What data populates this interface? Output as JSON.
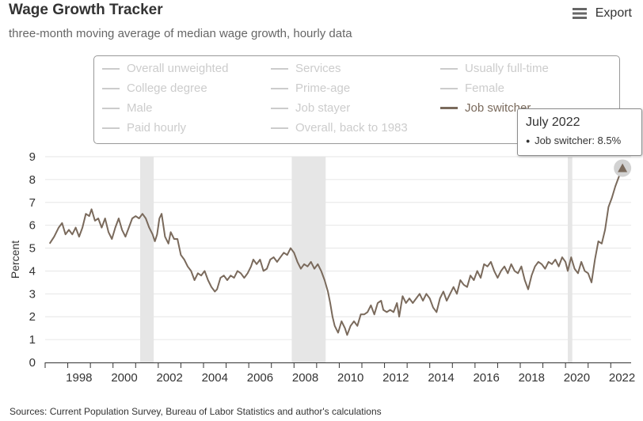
{
  "header": {
    "title": "Wage Growth Tracker",
    "subtitle": "three-month moving average of median wage growth, hourly data"
  },
  "export": {
    "label": "Export",
    "icon": "menu-icon"
  },
  "footer": {
    "source": "Sources: Current Population Survey, Bureau of Labor Statistics and author's calculations"
  },
  "legend": {
    "items": [
      {
        "label": "Overall unweighted",
        "active": false
      },
      {
        "label": "Services",
        "active": false
      },
      {
        "label": "Usually full-time",
        "active": false
      },
      {
        "label": "College degree",
        "active": false
      },
      {
        "label": "Prime-age",
        "active": false
      },
      {
        "label": "Female",
        "active": false
      },
      {
        "label": "Male",
        "active": false
      },
      {
        "label": "Job stayer",
        "active": false
      },
      {
        "label": "Job switcher",
        "active": true
      },
      {
        "label": "Paid hourly",
        "active": false
      },
      {
        "label": "Overall, back to 1983",
        "active": false
      }
    ]
  },
  "tooltip": {
    "title": "July 2022",
    "series": "Job switcher",
    "value_text": "8.5%"
  },
  "colors": {
    "series": "#7a6a5c",
    "recession": "#e6e6e6",
    "grid": "#e6e6e6",
    "inactive_legend": "#cccccc",
    "text": "#333333"
  },
  "chart_data": {
    "type": "line",
    "title": "Wage Growth Tracker",
    "subtitle": "three-month moving average of median wage growth, hourly data",
    "xlabel": "",
    "ylabel": "Percent",
    "xlim": [
      1997.0,
      2022.9
    ],
    "ylim": [
      0,
      9
    ],
    "yticks": [
      0,
      1,
      2,
      3,
      4,
      5,
      6,
      7,
      8,
      9
    ],
    "xticks": [
      1998,
      2000,
      2002,
      2004,
      2006,
      2008,
      2010,
      2012,
      2014,
      2016,
      2018,
      2020,
      2022
    ],
    "grid": "horizontal",
    "recessions": [
      [
        2001.2,
        2001.8
      ],
      [
        2007.9,
        2009.4
      ],
      [
        2020.1,
        2020.3
      ]
    ],
    "series": [
      {
        "name": "Job switcher",
        "points": [
          [
            1997.2,
            5.2
          ],
          [
            1997.4,
            5.5
          ],
          [
            1997.6,
            5.9
          ],
          [
            1997.75,
            6.1
          ],
          [
            1997.9,
            5.6
          ],
          [
            1998.05,
            5.8
          ],
          [
            1998.2,
            5.6
          ],
          [
            1998.35,
            5.9
          ],
          [
            1998.5,
            5.5
          ],
          [
            1998.65,
            5.9
          ],
          [
            1998.8,
            6.5
          ],
          [
            1998.95,
            6.4
          ],
          [
            1999.05,
            6.7
          ],
          [
            1999.2,
            6.2
          ],
          [
            1999.35,
            6.3
          ],
          [
            1999.5,
            5.9
          ],
          [
            1999.65,
            6.3
          ],
          [
            1999.8,
            5.7
          ],
          [
            1999.95,
            5.4
          ],
          [
            2000.1,
            5.9
          ],
          [
            2000.25,
            6.3
          ],
          [
            2000.4,
            5.8
          ],
          [
            2000.55,
            5.5
          ],
          [
            2000.7,
            5.9
          ],
          [
            2000.85,
            6.3
          ],
          [
            2001.0,
            6.4
          ],
          [
            2001.15,
            6.3
          ],
          [
            2001.3,
            6.5
          ],
          [
            2001.45,
            6.3
          ],
          [
            2001.6,
            5.9
          ],
          [
            2001.75,
            5.6
          ],
          [
            2001.85,
            5.3
          ],
          [
            2001.95,
            5.6
          ],
          [
            2002.05,
            6.3
          ],
          [
            2002.15,
            6.5
          ],
          [
            2002.3,
            5.5
          ],
          [
            2002.45,
            5.2
          ],
          [
            2002.55,
            5.7
          ],
          [
            2002.7,
            5.4
          ],
          [
            2002.85,
            5.4
          ],
          [
            2003.0,
            4.7
          ],
          [
            2003.15,
            4.5
          ],
          [
            2003.3,
            4.2
          ],
          [
            2003.45,
            4.0
          ],
          [
            2003.6,
            3.6
          ],
          [
            2003.75,
            3.9
          ],
          [
            2003.9,
            3.8
          ],
          [
            2004.05,
            4.0
          ],
          [
            2004.2,
            3.6
          ],
          [
            2004.35,
            3.3
          ],
          [
            2004.5,
            3.1
          ],
          [
            2004.6,
            3.2
          ],
          [
            2004.75,
            3.7
          ],
          [
            2004.9,
            3.8
          ],
          [
            2005.05,
            3.6
          ],
          [
            2005.2,
            3.8
          ],
          [
            2005.35,
            3.7
          ],
          [
            2005.5,
            4.0
          ],
          [
            2005.65,
            3.9
          ],
          [
            2005.8,
            3.7
          ],
          [
            2005.95,
            3.9
          ],
          [
            2006.1,
            4.2
          ],
          [
            2006.2,
            4.5
          ],
          [
            2006.35,
            4.3
          ],
          [
            2006.5,
            4.5
          ],
          [
            2006.65,
            4.0
          ],
          [
            2006.8,
            4.1
          ],
          [
            2006.95,
            4.5
          ],
          [
            2007.1,
            4.6
          ],
          [
            2007.25,
            4.4
          ],
          [
            2007.4,
            4.6
          ],
          [
            2007.55,
            4.8
          ],
          [
            2007.7,
            4.7
          ],
          [
            2007.85,
            5.0
          ],
          [
            2008.0,
            4.8
          ],
          [
            2008.15,
            4.4
          ],
          [
            2008.3,
            4.1
          ],
          [
            2008.45,
            4.3
          ],
          [
            2008.6,
            4.2
          ],
          [
            2008.75,
            4.4
          ],
          [
            2008.9,
            4.1
          ],
          [
            2009.05,
            4.3
          ],
          [
            2009.2,
            4.0
          ],
          [
            2009.35,
            3.6
          ],
          [
            2009.5,
            3.1
          ],
          [
            2009.6,
            2.6
          ],
          [
            2009.7,
            2.0
          ],
          [
            2009.8,
            1.6
          ],
          [
            2009.95,
            1.3
          ],
          [
            2010.1,
            1.8
          ],
          [
            2010.25,
            1.5
          ],
          [
            2010.35,
            1.2
          ],
          [
            2010.5,
            1.6
          ],
          [
            2010.65,
            1.8
          ],
          [
            2010.8,
            1.6
          ],
          [
            2010.95,
            2.1
          ],
          [
            2011.1,
            2.1
          ],
          [
            2011.25,
            2.2
          ],
          [
            2011.4,
            2.5
          ],
          [
            2011.55,
            2.1
          ],
          [
            2011.7,
            2.6
          ],
          [
            2011.85,
            2.7
          ],
          [
            2011.95,
            2.3
          ],
          [
            2012.1,
            2.2
          ],
          [
            2012.25,
            2.3
          ],
          [
            2012.4,
            2.2
          ],
          [
            2012.55,
            2.6
          ],
          [
            2012.65,
            2.0
          ],
          [
            2012.8,
            2.9
          ],
          [
            2012.95,
            2.6
          ],
          [
            2013.1,
            2.8
          ],
          [
            2013.25,
            2.6
          ],
          [
            2013.4,
            2.8
          ],
          [
            2013.55,
            3.0
          ],
          [
            2013.7,
            2.7
          ],
          [
            2013.85,
            3.0
          ],
          [
            2014.0,
            2.8
          ],
          [
            2014.15,
            2.4
          ],
          [
            2014.3,
            2.2
          ],
          [
            2014.45,
            2.8
          ],
          [
            2014.6,
            3.1
          ],
          [
            2014.75,
            2.7
          ],
          [
            2014.9,
            3.0
          ],
          [
            2015.05,
            3.3
          ],
          [
            2015.2,
            3.0
          ],
          [
            2015.35,
            3.6
          ],
          [
            2015.5,
            3.4
          ],
          [
            2015.65,
            3.3
          ],
          [
            2015.8,
            3.8
          ],
          [
            2015.95,
            3.6
          ],
          [
            2016.1,
            4.0
          ],
          [
            2016.25,
            3.7
          ],
          [
            2016.4,
            4.3
          ],
          [
            2016.55,
            4.2
          ],
          [
            2016.7,
            4.4
          ],
          [
            2016.85,
            4.0
          ],
          [
            2017.0,
            3.7
          ],
          [
            2017.15,
            4.0
          ],
          [
            2017.3,
            4.2
          ],
          [
            2017.45,
            3.9
          ],
          [
            2017.6,
            4.3
          ],
          [
            2017.75,
            4.0
          ],
          [
            2017.9,
            3.9
          ],
          [
            2018.05,
            4.2
          ],
          [
            2018.2,
            3.6
          ],
          [
            2018.35,
            3.2
          ],
          [
            2018.5,
            3.8
          ],
          [
            2018.65,
            4.2
          ],
          [
            2018.8,
            4.4
          ],
          [
            2018.95,
            4.3
          ],
          [
            2019.1,
            4.1
          ],
          [
            2019.25,
            4.4
          ],
          [
            2019.4,
            4.3
          ],
          [
            2019.55,
            4.5
          ],
          [
            2019.7,
            4.2
          ],
          [
            2019.85,
            4.6
          ],
          [
            2020.0,
            4.4
          ],
          [
            2020.1,
            4.0
          ],
          [
            2020.25,
            4.6
          ],
          [
            2020.4,
            4.1
          ],
          [
            2020.55,
            3.9
          ],
          [
            2020.7,
            4.4
          ],
          [
            2020.85,
            4.0
          ],
          [
            2021.0,
            3.9
          ],
          [
            2021.15,
            3.5
          ],
          [
            2021.3,
            4.5
          ],
          [
            2021.45,
            5.3
          ],
          [
            2021.6,
            5.2
          ],
          [
            2021.75,
            5.8
          ],
          [
            2021.9,
            6.8
          ],
          [
            2022.05,
            7.2
          ],
          [
            2022.2,
            7.7
          ],
          [
            2022.35,
            8.1
          ],
          [
            2022.52,
            8.5
          ]
        ]
      }
    ]
  }
}
